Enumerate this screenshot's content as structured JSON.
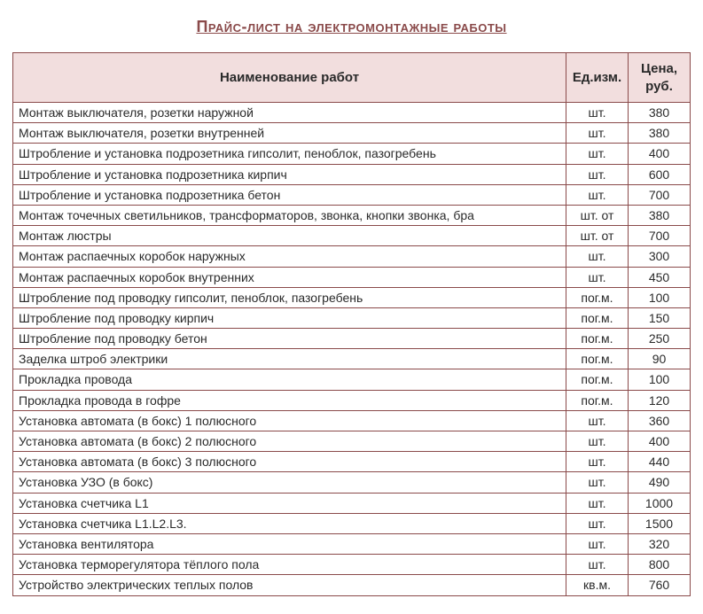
{
  "title": "Прайс-лист на электромонтажные работы",
  "columns": {
    "name": "Наименование работ",
    "unit": "Ед.изм.",
    "price": "Цена, руб."
  },
  "col_widths": {
    "name": "auto",
    "unit": 70,
    "price": 70
  },
  "header_bg": "#f2dede",
  "border_color": "#8a4a4a",
  "title_color": "#8a4a4a",
  "font_size_row": 14,
  "font_size_header": 15,
  "font_size_title": 18,
  "rows": [
    {
      "name": "Монтаж выключателя, розетки наружной",
      "unit": "шт.",
      "price": "380"
    },
    {
      "name": "Монтаж выключателя, розетки внутренней",
      "unit": "шт.",
      "price": "380"
    },
    {
      "name": "Штробление и установка подрозетника гипсолит, пеноблок, пазогребень",
      "unit": "шт.",
      "price": "400"
    },
    {
      "name": "Штробление и установка подрозетника кирпич",
      "unit": "шт.",
      "price": "600"
    },
    {
      "name": "Штробление и установка подрозетника бетон",
      "unit": "шт.",
      "price": "700"
    },
    {
      "name": "Монтаж точечных светильников, трансформаторов, звонка, кнопки звонка, бра",
      "unit": "шт. от",
      "price": "380"
    },
    {
      "name": "Монтаж люстры",
      "unit": "шт. от",
      "price": "700"
    },
    {
      "name": "Монтаж распаечных коробок наружных",
      "unit": "шт.",
      "price": "300"
    },
    {
      "name": "Монтаж распаечных коробок внутренних",
      "unit": "шт.",
      "price": "450"
    },
    {
      "name": "Штробление под проводку гипсолит, пеноблок, пазогребень",
      "unit": "пог.м.",
      "price": "100"
    },
    {
      "name": "Штробление под проводку кирпич",
      "unit": "пог.м.",
      "price": "150"
    },
    {
      "name": "Штробление под проводку бетон",
      "unit": "пог.м.",
      "price": "250"
    },
    {
      "name": "Заделка штроб электрики",
      "unit": "пог.м.",
      "price": "90"
    },
    {
      "name": "Прокладка провода",
      "unit": "пог.м.",
      "price": "100"
    },
    {
      "name": "Прокладка провода в гофре",
      "unit": "пог.м.",
      "price": "120"
    },
    {
      "name": "Установка автомата (в бокс) 1 полюсного",
      "unit": "шт.",
      "price": "360"
    },
    {
      "name": "Установка автомата (в бокс) 2 полюсного",
      "unit": "шт.",
      "price": "400"
    },
    {
      "name": "Установка автомата (в бокс) 3 полюсного",
      "unit": "шт.",
      "price": "440"
    },
    {
      "name": "Установка УЗО (в бокс)",
      "unit": "шт.",
      "price": "490"
    },
    {
      "name": "Установка счетчика L1",
      "unit": "шт.",
      "price": "1000"
    },
    {
      "name": "Установка счетчика L1.L2.L3.",
      "unit": "шт.",
      "price": "1500"
    },
    {
      "name": "Установка вентилятора",
      "unit": "шт.",
      "price": "320"
    },
    {
      "name": "Установка терморегулятора тёплого пола",
      "unit": "шт.",
      "price": "800"
    },
    {
      "name": "Устройство электрических теплых полов",
      "unit": "кв.м.",
      "price": "760"
    }
  ]
}
